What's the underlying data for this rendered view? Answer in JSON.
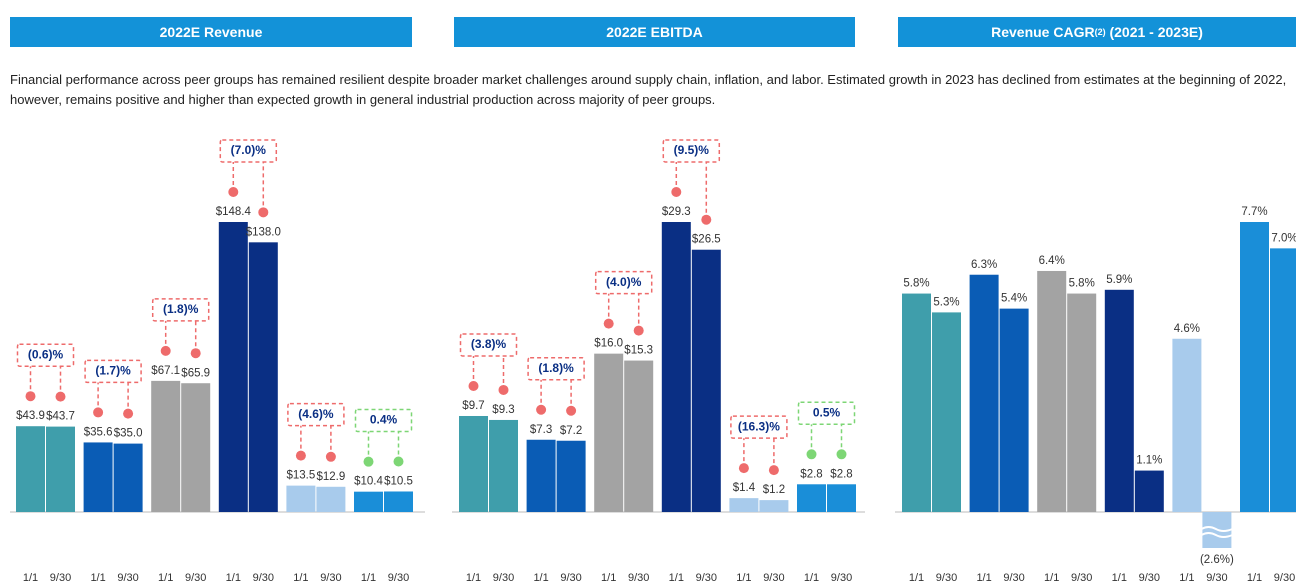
{
  "intro": "Financial performance across peer groups has remained resilient despite broader market challenges around supply chain, inflation, and labor. Estimated growth in 2023 has declined from estimates at the beginning of 2022, however, remains positive and higher than expected growth in general industrial production across majority of peer groups.",
  "chart_data": [
    {
      "type": "bar",
      "title": "2022E Revenue",
      "categories": [
        "1/1",
        "9/30",
        "1/1",
        "9/30",
        "1/1",
        "9/30",
        "1/1",
        "9/30",
        "1/1",
        "9/30",
        "1/1",
        "9/30"
      ],
      "values": [
        43.9,
        43.7,
        35.6,
        35.0,
        67.1,
        65.9,
        148.4,
        138.0,
        13.5,
        12.9,
        10.4,
        10.5
      ],
      "value_labels": [
        "$43.9",
        "$43.7",
        "$35.6",
        "$35.0",
        "$67.1",
        "$65.9",
        "$148.4",
        "$138.0",
        "$13.5",
        "$12.9",
        "$10.4",
        "$10.5"
      ],
      "colors": [
        "#3f9eab",
        "#0a5cb5",
        "#a3a3a3",
        "#0a2f84",
        "#a8cbec",
        "#1a8ed8"
      ],
      "changes": [
        {
          "value": -0.6,
          "label": "(0.6)%"
        },
        {
          "value": -1.7,
          "label": "(1.7)%"
        },
        {
          "value": -1.8,
          "label": "(1.8)%"
        },
        {
          "value": -7.0,
          "label": "(7.0)%"
        },
        {
          "value": -4.6,
          "label": "(4.6)%"
        },
        {
          "value": 0.4,
          "label": "0.4%"
        }
      ],
      "change_colors": {
        "negative": "#ee6b6b",
        "positive": "#7dd675"
      }
    },
    {
      "type": "bar",
      "title": "2022E EBITDA",
      "categories": [
        "1/1",
        "9/30",
        "1/1",
        "9/30",
        "1/1",
        "9/30",
        "1/1",
        "9/30",
        "1/1",
        "9/30",
        "1/1",
        "9/30"
      ],
      "values": [
        9.7,
        9.3,
        7.3,
        7.2,
        16.0,
        15.3,
        29.3,
        26.5,
        1.4,
        1.2,
        2.8,
        2.8
      ],
      "value_labels": [
        "$9.7",
        "$9.3",
        "$7.3",
        "$7.2",
        "$16.0",
        "$15.3",
        "$29.3",
        "$26.5",
        "$1.4",
        "$1.2",
        "$2.8",
        "$2.8"
      ],
      "colors": [
        "#3f9eab",
        "#0a5cb5",
        "#a3a3a3",
        "#0a2f84",
        "#a8cbec",
        "#1a8ed8"
      ],
      "changes": [
        {
          "value": -3.8,
          "label": "(3.8)%"
        },
        {
          "value": -1.8,
          "label": "(1.8)%"
        },
        {
          "value": -4.0,
          "label": "(4.0)%"
        },
        {
          "value": -9.5,
          "label": "(9.5)%"
        },
        {
          "value": -16.3,
          "label": "(16.3)%"
        },
        {
          "value": 0.5,
          "label": "0.5%"
        }
      ],
      "change_colors": {
        "negative": "#ee6b6b",
        "positive": "#7dd675"
      }
    },
    {
      "type": "bar",
      "title": "Revenue CAGR",
      "title_sup": "(2)",
      "title_suffix": " (2021 - 2023E)",
      "categories": [
        "1/1",
        "9/30",
        "1/1",
        "9/30",
        "1/1",
        "9/30",
        "1/1",
        "9/30",
        "1/1",
        "9/30",
        "1/1",
        "9/30"
      ],
      "values": [
        5.8,
        5.3,
        6.3,
        5.4,
        6.4,
        5.8,
        5.9,
        1.1,
        4.6,
        -2.6,
        7.7,
        7.0
      ],
      "value_labels": [
        "5.8%",
        "5.3%",
        "6.3%",
        "5.4%",
        "6.4%",
        "5.8%",
        "5.9%",
        "1.1%",
        "4.6%",
        "(2.6%)",
        "7.7%",
        "7.0%"
      ],
      "colors": [
        "#3f9eab",
        "#0a5cb5",
        "#a3a3a3",
        "#0a2f84",
        "#a8cbec",
        "#1a8ed8"
      ]
    }
  ]
}
